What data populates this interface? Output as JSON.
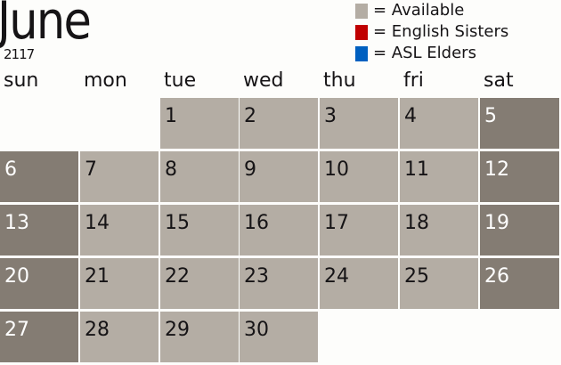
{
  "month": "June",
  "year": "2117",
  "legend": [
    {
      "label": "= Available",
      "color": "#b4ada4"
    },
    {
      "label": "= English Sisters",
      "color": "#c00000"
    },
    {
      "label": "= ASL Elders",
      "color": "#0060c0"
    }
  ],
  "weekdays": [
    "sun",
    "mon",
    "tue",
    "wed",
    "thu",
    "fri",
    "sat"
  ],
  "first_weekday": 2,
  "days_in_month": 30,
  "colors": {
    "available": "#b4ada4",
    "weekend": "#847c73"
  }
}
